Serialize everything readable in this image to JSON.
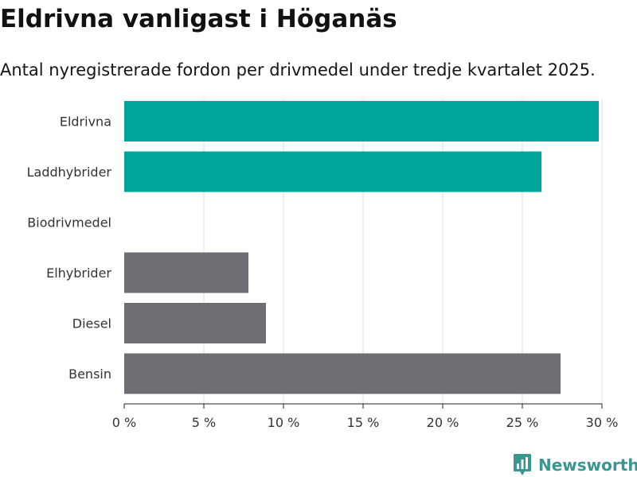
{
  "title": "Eldrivna vanligast i Höganäs",
  "subtitle": "Antal nyregistrerade fordon per drivmedel under tredje kvartalet 2025.",
  "brand": {
    "name": "Newsworthy",
    "color": "#3a9691",
    "icon": "newsworthy-bar-chart-bubble-icon"
  },
  "chart_data": {
    "type": "bar",
    "orientation": "horizontal",
    "categories": [
      "Eldrivna",
      "Laddhybrider",
      "Biodrivmedel",
      "Elhybrider",
      "Diesel",
      "Bensin"
    ],
    "values": [
      29.8,
      26.2,
      0,
      7.8,
      8.9,
      27.4
    ],
    "colors": [
      "#00a59b",
      "#00a59b",
      "#00a59b",
      "#6e6d73",
      "#6e6d73",
      "#6e6d73"
    ],
    "xlim": [
      0,
      30
    ],
    "x_ticks": [
      0,
      5,
      10,
      15,
      20,
      25,
      30
    ],
    "x_tick_labels": [
      "0 %",
      "5 %",
      "10 %",
      "15 %",
      "20 %",
      "25 %",
      "30 %"
    ],
    "grid": true,
    "legend": "none",
    "xlabel": "",
    "ylabel": ""
  }
}
